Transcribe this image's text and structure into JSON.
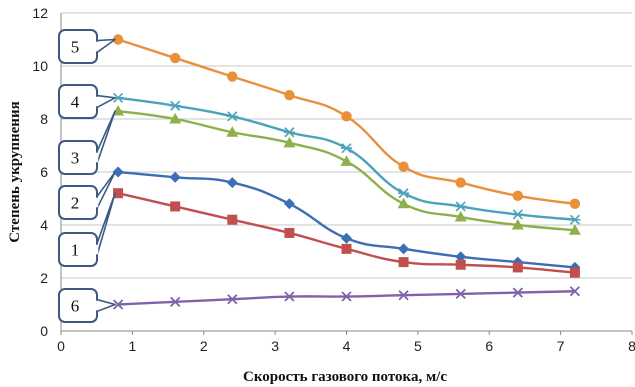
{
  "chart_data": {
    "type": "line",
    "xlabel": "Скорость газового потока, м/с",
    "ylabel": "Степень укрупнения",
    "xlim": [
      0,
      8
    ],
    "ylim": [
      0,
      12
    ],
    "x_ticks": [
      "0",
      "1",
      "2",
      "3",
      "4",
      "5",
      "6",
      "7",
      "8"
    ],
    "y_ticks": [
      "0",
      "2",
      "4",
      "6",
      "8",
      "10",
      "12"
    ],
    "grid": "horizontal",
    "legend": "callout boxes",
    "x": [
      0.8,
      1.6,
      2.4,
      3.2,
      4.0,
      4.8,
      5.6,
      6.4,
      7.2
    ],
    "series": [
      {
        "name": "5",
        "color": "#e8913a",
        "marker": "circle",
        "values": [
          11.0,
          10.3,
          9.6,
          8.9,
          8.1,
          6.2,
          5.6,
          5.1,
          4.8
        ]
      },
      {
        "name": "4",
        "color": "#4aa3b9",
        "marker": "asterisk",
        "values": [
          8.8,
          8.5,
          8.1,
          7.5,
          6.9,
          5.2,
          4.7,
          4.4,
          4.2
        ]
      },
      {
        "name": "3",
        "color": "#8db04a",
        "marker": "triangle",
        "values": [
          8.3,
          8.0,
          7.5,
          7.1,
          6.4,
          4.8,
          4.3,
          4.0,
          3.8
        ]
      },
      {
        "name": "2",
        "color": "#3b6eb6",
        "marker": "diamond",
        "values": [
          6.0,
          5.8,
          5.6,
          4.8,
          3.5,
          3.1,
          2.8,
          2.6,
          2.4
        ]
      },
      {
        "name": "1",
        "color": "#c0504d",
        "marker": "square",
        "values": [
          5.2,
          4.7,
          4.2,
          3.7,
          3.1,
          2.6,
          2.5,
          2.4,
          2.2
        ]
      },
      {
        "name": "6",
        "color": "#7f62a8",
        "marker": "x",
        "values": [
          1.0,
          1.1,
          1.2,
          1.3,
          1.3,
          1.35,
          1.4,
          1.45,
          1.5
        ]
      }
    ]
  }
}
